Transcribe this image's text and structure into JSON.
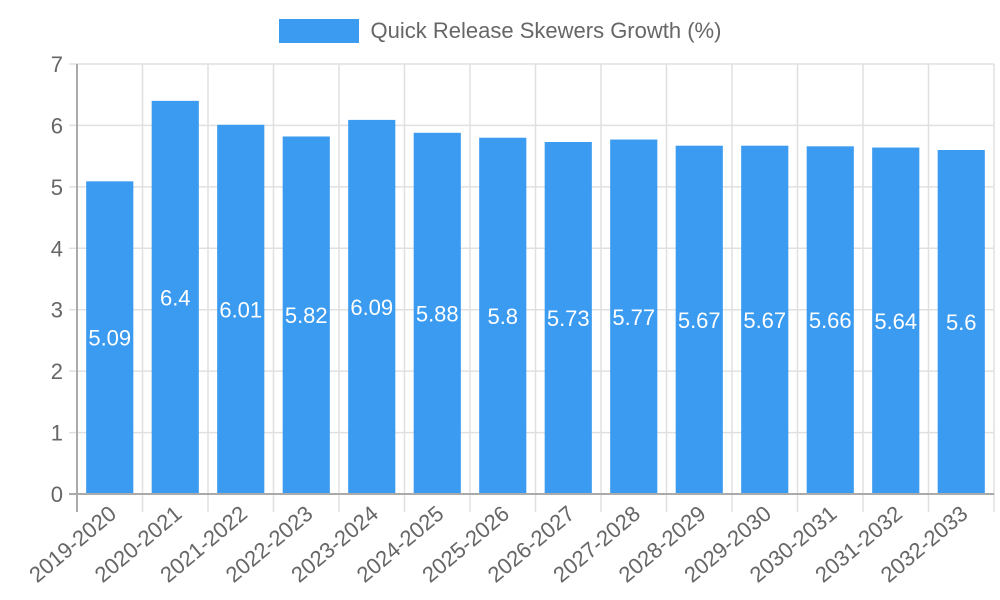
{
  "chart_data": {
    "type": "bar",
    "title": "",
    "xlabel": "",
    "ylabel": "",
    "ylim": [
      0,
      7
    ],
    "yticks": [
      0,
      1,
      2,
      3,
      4,
      5,
      6,
      7
    ],
    "grid": true,
    "legend_position": "top",
    "categories": [
      "2019-2020",
      "2020-2021",
      "2021-2022",
      "2022-2023",
      "2023-2024",
      "2024-2025",
      "2025-2026",
      "2026-2027",
      "2027-2028",
      "2028-2029",
      "2029-2030",
      "2030-2031",
      "2031-2032",
      "2032-2033"
    ],
    "series": [
      {
        "name": "Quick Release Skewers Growth (%)",
        "color": "#3a9bf0",
        "values": [
          5.09,
          6.4,
          6.01,
          5.82,
          6.09,
          5.88,
          5.8,
          5.73,
          5.77,
          5.67,
          5.67,
          5.66,
          5.64,
          5.6
        ]
      }
    ]
  },
  "legend": {
    "label": "Quick Release Skewers Growth (%)"
  }
}
